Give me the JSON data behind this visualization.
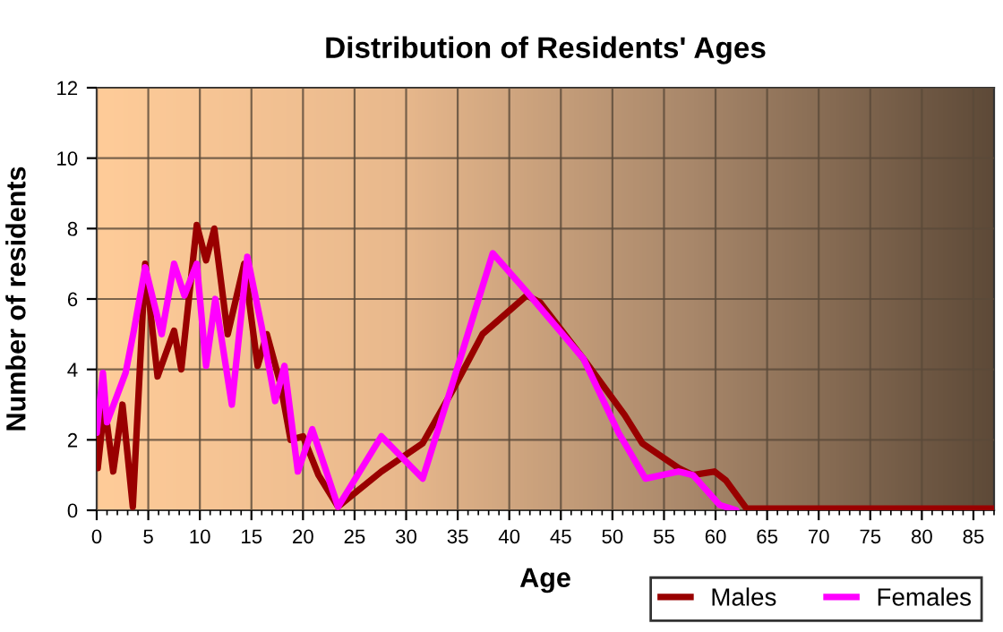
{
  "chart_data": {
    "type": "line",
    "title": "Distribution of Residents' Ages",
    "xlabel": "Age",
    "ylabel": "Number of residents",
    "xlim": [
      0,
      87
    ],
    "xticks": [
      0,
      5,
      10,
      15,
      20,
      25,
      30,
      35,
      40,
      45,
      50,
      55,
      60,
      65,
      70,
      75,
      80,
      85
    ],
    "ylim": [
      0,
      12
    ],
    "yticks": [
      0,
      2,
      4,
      6,
      8,
      10,
      12
    ],
    "grid": true,
    "legend": "bottom right",
    "marker": "none",
    "line_style": "solid",
    "series": [
      {
        "name": "Males",
        "color": "#990000",
        "x": [
          0,
          0.1,
          0.75,
          1.6,
          2.5,
          3.5,
          4.7,
          5.9,
          7.5,
          8.2,
          9.7,
          10.6,
          11.4,
          12.7,
          14.3,
          15.6,
          16.5,
          17.8,
          18.8,
          20,
          21.5,
          23.4,
          27.6,
          31.6,
          34.5,
          37.4,
          41.7,
          43,
          47.2,
          51.2,
          52.9,
          56.4,
          57.8,
          59.9,
          61,
          63,
          70,
          80,
          87
        ],
        "values": [
          2.2,
          1.2,
          3.0,
          1.1,
          3.0,
          0.1,
          7.0,
          3.8,
          5.1,
          4.0,
          8.1,
          7.1,
          8.0,
          5.0,
          7.0,
          4.1,
          5.0,
          3.6,
          2.0,
          2.1,
          1.0,
          0.1,
          1.1,
          1.9,
          3.4,
          5.0,
          6.1,
          5.9,
          4.3,
          2.7,
          1.9,
          1.2,
          1.0,
          1.1,
          0.85,
          0.05,
          0.05,
          0.05,
          0.05
        ]
      },
      {
        "name": "Females",
        "color": "#ff00ff",
        "x": [
          0,
          0.6,
          1,
          2.8,
          3.6,
          4.7,
          6.3,
          7.5,
          8.5,
          9.7,
          10.6,
          11.5,
          13.1,
          14.6,
          16,
          17.3,
          18.2,
          19.5,
          20.9,
          23.4,
          27.6,
          31.6,
          34.5,
          38.4,
          41.7,
          47.2,
          50.6,
          53.2,
          56.4,
          57.8,
          60.4,
          62
        ],
        "values": [
          2.2,
          3.9,
          2.5,
          3.9,
          5.1,
          6.9,
          5.0,
          7.0,
          6.1,
          7.0,
          4.1,
          6.0,
          3.0,
          7.2,
          5.2,
          3.1,
          4.1,
          1.1,
          2.3,
          0.1,
          2.1,
          0.9,
          3.6,
          7.3,
          6.2,
          4.3,
          2.2,
          0.9,
          1.1,
          1.0,
          0.15,
          0
        ]
      }
    ]
  }
}
